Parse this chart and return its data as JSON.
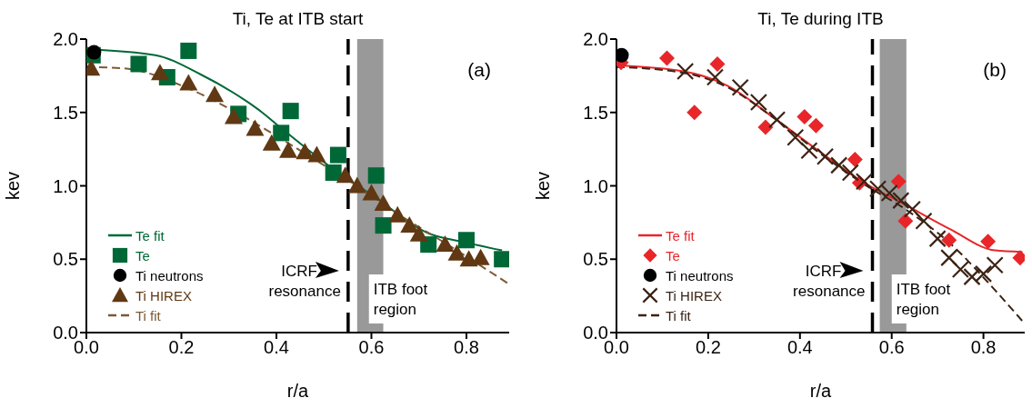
{
  "chart_data": [
    {
      "type": "scatter",
      "title": "Ti, Te at ITB start",
      "xlabel": "r/a",
      "ylabel": "kev",
      "xlim": [
        0,
        0.89
      ],
      "ylim": [
        0,
        2.0
      ],
      "xticks": [
        {
          "value": 0,
          "label": "0.0"
        },
        {
          "value": 0.2,
          "label": "0.2"
        },
        {
          "value": 0.4,
          "label": "0.4"
        },
        {
          "value": 0.6,
          "label": "0.6"
        },
        {
          "value": 0.8,
          "label": "0.8"
        }
      ],
      "yticks": [
        {
          "value": 0,
          "label": "0.0"
        },
        {
          "value": 0.5,
          "label": "0.5"
        },
        {
          "value": 1,
          "label": "1.0"
        },
        {
          "value": 1.5,
          "label": "1.5"
        },
        {
          "value": 2,
          "label": "2.0"
        }
      ],
      "grid": false,
      "legend": "bottom left",
      "annotations": [
        "(a)"
      ],
      "ref_lines": [
        {
          "axis": "x",
          "value": 0.551,
          "label": "ICRF resonance",
          "color": "#000000",
          "line_style": "dashed"
        }
      ],
      "bands": [
        {
          "axis": "x",
          "from": 0.57,
          "to": 0.625,
          "label": "ITB foot region",
          "color": "#999999"
        }
      ],
      "series": [
        {
          "name": "Te fit",
          "type": "line",
          "color": "#006837",
          "line_style": "solid",
          "marker": "none",
          "x": [
            0,
            0.145,
            0.24,
            0.34,
            0.37,
            0.4,
            0.53,
            0.6,
            0.725,
            0.79,
            0.875
          ],
          "values": [
            1.93,
            1.89,
            1.76,
            1.57,
            1.5,
            1.42,
            1.09,
            0.94,
            0.67,
            0.62,
            0.56
          ]
        },
        {
          "name": "Te",
          "color": "#006837",
          "marker": "square",
          "x": [
            0.013,
            0.11,
            0.17,
            0.215,
            0.32,
            0.43,
            0.41,
            0.53,
            0.52,
            0.61,
            0.625,
            0.72,
            0.8,
            0.875
          ],
          "values": [
            1.89,
            1.83,
            1.74,
            1.92,
            1.49,
            1.51,
            1.36,
            1.21,
            1.09,
            1.07,
            0.73,
            0.6,
            0.63,
            0.5
          ]
        },
        {
          "name": "Ti neutrons",
          "color": "#000000",
          "marker": "circle",
          "x": [
            0.016
          ],
          "values": [
            1.91
          ]
        },
        {
          "name": "Ti HIREX",
          "color": "#603813",
          "marker": "triangle",
          "x": [
            0.01,
            0.155,
            0.215,
            0.27,
            0.31,
            0.355,
            0.39,
            0.425,
            0.46,
            0.485,
            0.545,
            0.57,
            0.6,
            0.625,
            0.655,
            0.68,
            0.7,
            0.755,
            0.78,
            0.805,
            0.83
          ],
          "values": [
            1.8,
            1.77,
            1.7,
            1.62,
            1.47,
            1.39,
            1.29,
            1.24,
            1.23,
            1.21,
            1.07,
            1.0,
            0.95,
            0.88,
            0.8,
            0.73,
            0.67,
            0.6,
            0.54,
            0.5,
            0.51
          ]
        },
        {
          "name": "Ti fit",
          "type": "line",
          "color": "#7b5a34",
          "line_style": "dashed",
          "marker": "none",
          "x": [
            0,
            0.08,
            0.21,
            0.31,
            0.39,
            0.48,
            0.565,
            0.66,
            0.76,
            0.89
          ],
          "values": [
            1.81,
            1.8,
            1.67,
            1.51,
            1.36,
            1.18,
            1.01,
            0.8,
            0.6,
            0.33
          ]
        }
      ]
    },
    {
      "type": "scatter",
      "title": "Ti, Te during ITB",
      "xlabel": "r/a",
      "ylabel": "kev",
      "xlim": [
        0,
        0.89
      ],
      "ylim": [
        0,
        2.0
      ],
      "xticks": [
        {
          "value": 0,
          "label": "0.0"
        },
        {
          "value": 0.2,
          "label": "0.2"
        },
        {
          "value": 0.4,
          "label": "0.4"
        },
        {
          "value": 0.6,
          "label": "0.6"
        },
        {
          "value": 0.8,
          "label": "0.8"
        }
      ],
      "yticks": [
        {
          "value": 0,
          "label": "0.0"
        },
        {
          "value": 0.5,
          "label": "0.5"
        },
        {
          "value": 1,
          "label": "1.0"
        },
        {
          "value": 1.5,
          "label": "1.5"
        },
        {
          "value": 2,
          "label": "2.0"
        }
      ],
      "grid": false,
      "legend": "bottom left",
      "annotations": [
        "(b)"
      ],
      "ref_lines": [
        {
          "axis": "x",
          "value": 0.558,
          "label": "ICRF resonance",
          "color": "#000000",
          "line_style": "dashed"
        }
      ],
      "bands": [
        {
          "axis": "x",
          "from": 0.574,
          "to": 0.632,
          "label": "ITB foot region",
          "color": "#999999"
        }
      ],
      "series": [
        {
          "name": "Te fit",
          "type": "line",
          "color": "#e8262a",
          "line_style": "solid",
          "marker": "none",
          "x": [
            0,
            0.146,
            0.243,
            0.34,
            0.44,
            0.535,
            0.63,
            0.73,
            0.825,
            0.885
          ],
          "values": [
            1.82,
            1.78,
            1.68,
            1.47,
            1.24,
            1.03,
            0.87,
            0.7,
            0.56,
            0.55
          ]
        },
        {
          "name": "Te",
          "color": "#e8262a",
          "marker": "diamond",
          "x": [
            0.01,
            0.11,
            0.17,
            0.22,
            0.325,
            0.41,
            0.435,
            0.52,
            0.53,
            0.615,
            0.63,
            0.725,
            0.81,
            0.88
          ],
          "values": [
            1.84,
            1.87,
            1.5,
            1.83,
            1.4,
            1.47,
            1.41,
            1.18,
            1.02,
            1.03,
            0.76,
            0.63,
            0.62,
            0.51
          ]
        },
        {
          "name": "Ti neutrons",
          "color": "#000000",
          "marker": "circle",
          "x": [
            0.011
          ],
          "values": [
            1.89
          ]
        },
        {
          "name": "Ti HIREX",
          "color": "#3b2314",
          "marker": "cross",
          "x": [
            0.15,
            0.215,
            0.27,
            0.31,
            0.35,
            0.39,
            0.42,
            0.455,
            0.485,
            0.51,
            0.54,
            0.57,
            0.595,
            0.62,
            0.645,
            0.67,
            0.7,
            0.725,
            0.75,
            0.775,
            0.8,
            0.825
          ],
          "values": [
            1.78,
            1.74,
            1.67,
            1.57,
            1.45,
            1.33,
            1.24,
            1.2,
            1.14,
            1.09,
            1.03,
            0.98,
            0.95,
            0.9,
            0.84,
            0.76,
            0.64,
            0.51,
            0.43,
            0.38,
            0.4,
            0.46
          ]
        },
        {
          "name": "Ti fit",
          "type": "line",
          "color": "#3b2314",
          "line_style": "dashed",
          "marker": "none",
          "x": [
            0,
            0.146,
            0.243,
            0.34,
            0.44,
            0.535,
            0.63,
            0.73,
            0.825,
            0.89
          ],
          "values": [
            1.81,
            1.77,
            1.67,
            1.47,
            1.23,
            1.02,
            0.84,
            0.6,
            0.29,
            0.06
          ]
        }
      ]
    }
  ]
}
